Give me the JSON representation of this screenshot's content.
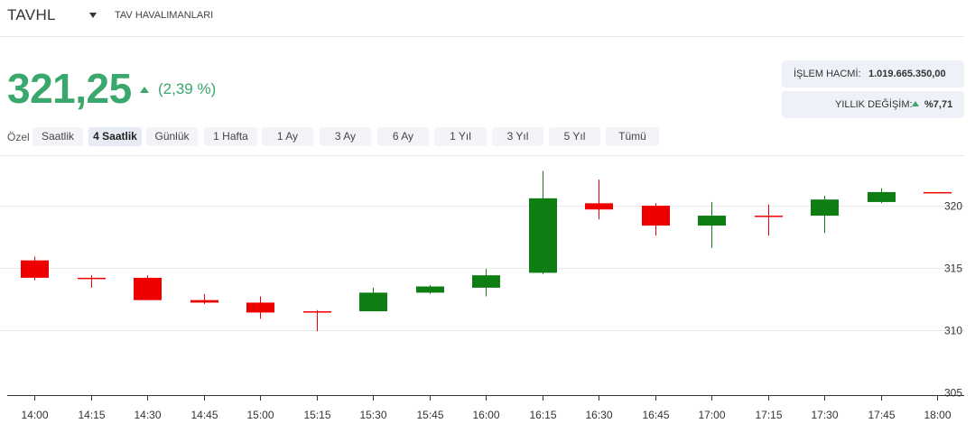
{
  "header": {
    "ticker": "TAVHL",
    "company": "TAV HAVALIMANLARI"
  },
  "quote": {
    "price": "321,25",
    "change": "(2,39 %)"
  },
  "stats": {
    "volume_label": "İŞLEM HACMİ:",
    "volume_value": "1.019.665.350,00",
    "yearly_label": "YILLIK DEĞİŞİM:",
    "yearly_value": "%7,71"
  },
  "periods": {
    "custom_label": "Özel",
    "items": [
      "Saatlik",
      "4 Saatlik",
      "Günlük",
      "1 Hafta",
      "1 Ay",
      "3 Ay",
      "6 Ay",
      "1 Yıl",
      "3 Yıl",
      "5 Yıl",
      "Tümü"
    ],
    "active": "4 Saatlik"
  },
  "colors": {
    "up": "#0e7d12",
    "down": "#ee0000",
    "accent": "#3aa76d"
  },
  "chart_data": {
    "type": "candlestick",
    "categories": [
      "14:00",
      "14:15",
      "14:30",
      "14:45",
      "15:00",
      "15:15",
      "15:30",
      "15:45",
      "16:00",
      "16:15",
      "16:30",
      "16:45",
      "17:00",
      "17:15",
      "17:30",
      "17:45",
      "18:00"
    ],
    "series": [
      {
        "values": [
          {
            "o": 315.6,
            "h": 315.9,
            "l": 314.0,
            "c": 314.2
          },
          {
            "o": 314.2,
            "h": 314.4,
            "l": 313.4,
            "c": 314.1
          },
          {
            "o": 314.2,
            "h": 314.4,
            "l": 312.4,
            "c": 312.4
          },
          {
            "o": 312.4,
            "h": 312.9,
            "l": 312.1,
            "c": 312.2
          },
          {
            "o": 312.2,
            "h": 312.7,
            "l": 310.9,
            "c": 311.4
          },
          {
            "o": 311.5,
            "h": 311.6,
            "l": 309.9,
            "c": 311.5
          },
          {
            "o": 311.5,
            "h": 313.4,
            "l": 311.5,
            "c": 313.0
          },
          {
            "o": 313.0,
            "h": 313.6,
            "l": 312.9,
            "c": 313.5
          },
          {
            "o": 313.4,
            "h": 314.9,
            "l": 312.7,
            "c": 314.4
          },
          {
            "o": 314.6,
            "h": 322.8,
            "l": 314.5,
            "c": 320.6
          },
          {
            "o": 320.2,
            "h": 322.1,
            "l": 318.9,
            "c": 319.7
          },
          {
            "o": 320.0,
            "h": 320.2,
            "l": 317.6,
            "c": 318.4
          },
          {
            "o": 318.4,
            "h": 320.3,
            "l": 316.6,
            "c": 319.2
          },
          {
            "o": 319.2,
            "h": 320.1,
            "l": 317.6,
            "c": 319.2
          },
          {
            "o": 319.2,
            "h": 320.8,
            "l": 317.8,
            "c": 320.5
          },
          {
            "o": 320.3,
            "h": 321.4,
            "l": 320.2,
            "c": 321.1
          },
          {
            "o": 321.1,
            "h": 321.1,
            "l": 321.1,
            "c": 321.1
          }
        ]
      }
    ],
    "yticks": [
      305,
      310,
      315,
      320
    ],
    "ylim": [
      304.75,
      324.0
    ],
    "grid": true,
    "yaxis_position": "right"
  }
}
